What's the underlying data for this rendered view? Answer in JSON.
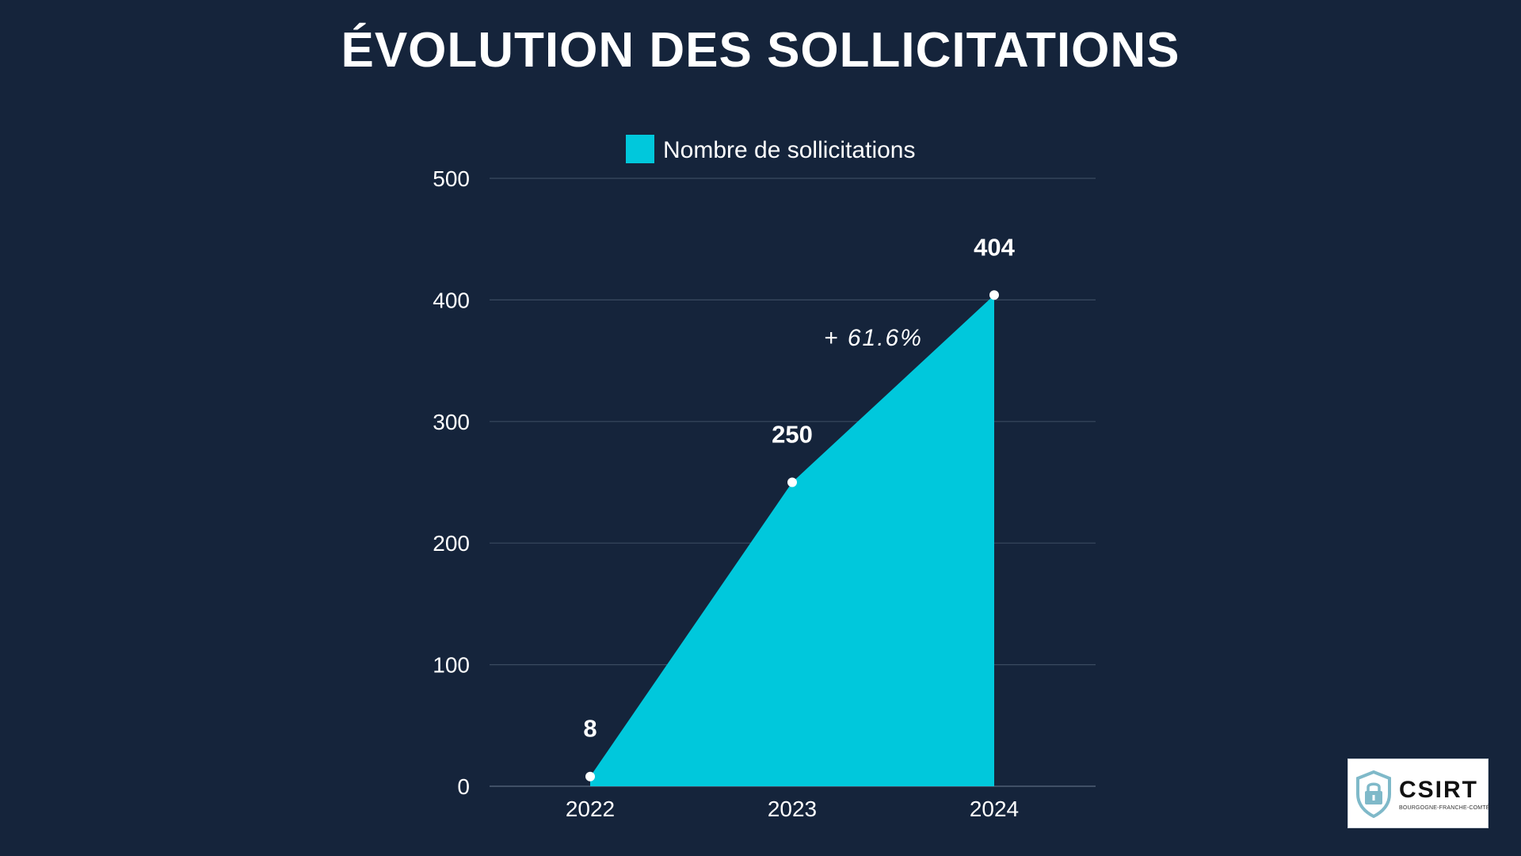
{
  "title": "ÉVOLUTION DES SOLLICITATIONS",
  "colors": {
    "background": "#15243b",
    "area": "#00c8dc",
    "grid": "#3a4a60",
    "text": "#ffffff"
  },
  "chart_data": {
    "type": "area",
    "title": "ÉVOLUTION DES SOLLICITATIONS",
    "categories": [
      "2022",
      "2023",
      "2024"
    ],
    "series": [
      {
        "name": "Nombre de sollicitations",
        "values": [
          8,
          250,
          404
        ]
      }
    ],
    "data_labels": [
      "8",
      "250",
      "404"
    ],
    "ylim": [
      0,
      500
    ],
    "yticks": [
      0,
      100,
      200,
      300,
      400,
      500
    ],
    "grid": true,
    "legend_position": "top-center",
    "annotation": {
      "text": "+ 61.6%",
      "between": [
        "2023",
        "2024"
      ]
    }
  },
  "logo": {
    "word": "CSIRT",
    "subtitle": "BOURGOGNE-FRANCHE-COMTÉ",
    "icon": "padlock-shield-icon"
  }
}
